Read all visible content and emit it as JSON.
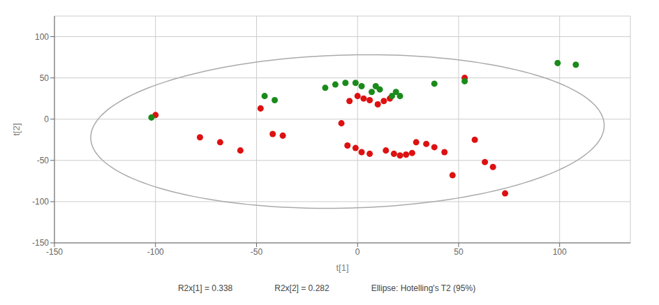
{
  "chart_data": {
    "type": "scatter",
    "xlabel": "t[1]",
    "ylabel": "t[2]",
    "annotations": [
      "R2x[1] = 0.338",
      "R2x[2] = 0.282",
      "Ellipse: Hotelling's T2 (95%)"
    ],
    "xlim": [
      -150,
      135
    ],
    "ylim": [
      -150,
      125
    ],
    "xticks": [
      -150,
      -100,
      -50,
      0,
      50,
      100
    ],
    "yticks": [
      -150,
      -100,
      -50,
      0,
      50,
      100
    ],
    "grid": true,
    "ellipse": {
      "center": [
        -5,
        -15
      ],
      "width": 255,
      "height": 185,
      "angle": 7,
      "color": "#aaaaaa"
    },
    "series": [
      {
        "color": "#dd1111",
        "points": [
          [
            -100,
            5
          ],
          [
            -78,
            -22
          ],
          [
            -68,
            -28
          ],
          [
            -58,
            -38
          ],
          [
            -48,
            13
          ],
          [
            -42,
            -18
          ],
          [
            -37,
            -20
          ],
          [
            -8,
            -5
          ],
          [
            -5,
            -32
          ],
          [
            -4,
            22
          ],
          [
            0,
            28
          ],
          [
            3,
            25
          ],
          [
            6,
            23
          ],
          [
            -1,
            -35
          ],
          [
            2,
            -40
          ],
          [
            6,
            -42
          ],
          [
            10,
            18
          ],
          [
            13,
            22
          ],
          [
            16,
            25
          ],
          [
            14,
            -38
          ],
          [
            18,
            -42
          ],
          [
            21,
            -44
          ],
          [
            24,
            -43
          ],
          [
            27,
            -41
          ],
          [
            29,
            -28
          ],
          [
            34,
            -30
          ],
          [
            38,
            -34
          ],
          [
            43,
            -40
          ],
          [
            47,
            -68
          ],
          [
            53,
            50
          ],
          [
            58,
            -25
          ],
          [
            63,
            -52
          ],
          [
            67,
            -58
          ],
          [
            73,
            -90
          ]
        ]
      },
      {
        "color": "#1a8a1a",
        "points": [
          [
            -102,
            2
          ],
          [
            -46,
            28
          ],
          [
            -41,
            23
          ],
          [
            -16,
            38
          ],
          [
            -11,
            42
          ],
          [
            -6,
            44
          ],
          [
            -1,
            44
          ],
          [
            2,
            40
          ],
          [
            7,
            33
          ],
          [
            9,
            40
          ],
          [
            11,
            36
          ],
          [
            17,
            28
          ],
          [
            19,
            33
          ],
          [
            21,
            28
          ],
          [
            38,
            43
          ],
          [
            53,
            46
          ],
          [
            99,
            68
          ],
          [
            108,
            66
          ]
        ]
      }
    ]
  }
}
